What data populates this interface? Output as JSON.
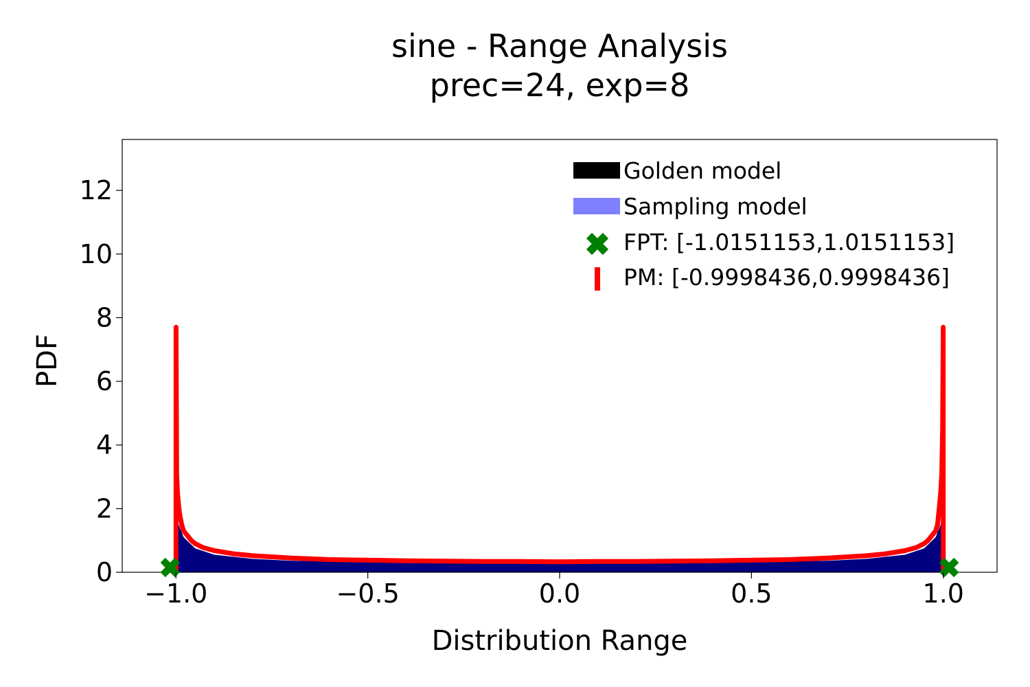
{
  "chart_data": {
    "type": "area",
    "title": "sine - Range Analysis",
    "subtitle": "prec=24, exp=8",
    "xlabel": "Distribution Range",
    "ylabel": "PDF",
    "xlim": [
      -1.14,
      1.14
    ],
    "ylim": [
      0,
      13.6
    ],
    "x_ticks": [
      -1.0,
      -0.5,
      0.0,
      0.5,
      1.0
    ],
    "x_tick_labels": [
      "−1.0",
      "−0.5",
      "0.0",
      "0.5",
      "1.0"
    ],
    "y_ticks": [
      0,
      2,
      4,
      6,
      8,
      10,
      12
    ],
    "y_tick_labels": [
      "0",
      "2",
      "4",
      "6",
      "8",
      "10",
      "12"
    ],
    "grid": false,
    "legend_position": "upper-right",
    "series": [
      {
        "name": "Golden model",
        "kind": "filled-area",
        "color": "#000000",
        "x": [
          -0.9998,
          -0.999,
          -0.99,
          -0.98,
          -0.95,
          -0.9,
          -0.8,
          -0.7,
          -0.5,
          -0.3,
          0.0,
          0.3,
          0.5,
          0.7,
          0.8,
          0.9,
          0.95,
          0.98,
          0.99,
          0.999,
          0.9998
        ],
        "y": [
          1.8,
          1.7,
          1.4,
          1.1,
          0.75,
          0.55,
          0.42,
          0.36,
          0.32,
          0.3,
          0.29,
          0.3,
          0.32,
          0.36,
          0.42,
          0.55,
          0.75,
          1.1,
          1.4,
          1.7,
          1.8
        ]
      },
      {
        "name": "Sampling model",
        "kind": "filled-area",
        "color": "#8080ff",
        "x": [
          -0.9998,
          -0.999,
          -0.99,
          -0.98,
          -0.95,
          -0.9,
          -0.8,
          -0.7,
          -0.5,
          -0.3,
          0.0,
          0.3,
          0.5,
          0.7,
          0.8,
          0.9,
          0.95,
          0.98,
          0.99,
          0.999,
          0.9998
        ],
        "y": [
          1.8,
          1.7,
          1.4,
          1.1,
          0.75,
          0.55,
          0.42,
          0.36,
          0.32,
          0.3,
          0.29,
          0.3,
          0.32,
          0.36,
          0.42,
          0.55,
          0.75,
          1.1,
          1.4,
          1.7,
          1.8
        ]
      },
      {
        "name": "PM: [-0.9998436,0.9998436]",
        "kind": "line",
        "color": "#ff0000",
        "x": [
          -0.9998436,
          -0.9997,
          -0.998,
          -0.996,
          -0.993,
          -0.99,
          -0.985,
          -0.98,
          -0.97,
          -0.96,
          -0.95,
          -0.93,
          -0.9,
          -0.85,
          -0.8,
          -0.7,
          -0.6,
          -0.5,
          -0.4,
          -0.3,
          -0.2,
          -0.1,
          0.0,
          0.1,
          0.2,
          0.3,
          0.4,
          0.5,
          0.6,
          0.7,
          0.8,
          0.85,
          0.9,
          0.93,
          0.95,
          0.96,
          0.97,
          0.98,
          0.985,
          0.99,
          0.993,
          0.996,
          0.998,
          0.9997,
          0.9998436
        ],
        "y": [
          0,
          7.7,
          3.1,
          2.5,
          2.1,
          1.8,
          1.5,
          1.3,
          1.15,
          1.0,
          0.9,
          0.78,
          0.68,
          0.58,
          0.52,
          0.45,
          0.4,
          0.38,
          0.36,
          0.35,
          0.34,
          0.34,
          0.33,
          0.34,
          0.34,
          0.35,
          0.36,
          0.38,
          0.4,
          0.45,
          0.52,
          0.58,
          0.68,
          0.78,
          0.9,
          1.0,
          1.15,
          1.3,
          1.5,
          2.1,
          2.5,
          3.1,
          4.5,
          7.7,
          0
        ]
      },
      {
        "name": "FPT: [-1.0151153,1.0151153]",
        "kind": "marker",
        "color": "#008000",
        "x": [
          -1.0151153,
          1.0151153
        ],
        "y": [
          0.15,
          0.15
        ]
      }
    ]
  },
  "legend": {
    "items": [
      {
        "label": "Golden model",
        "swatch": "bar",
        "color": "#000000"
      },
      {
        "label": "Sampling model",
        "swatch": "bar",
        "color": "#8080ff"
      },
      {
        "label": "FPT: [-1.0151153,1.0151153]",
        "swatch": "x-marker",
        "color": "#008000"
      },
      {
        "label": "PM: [-0.9998436,0.9998436]",
        "swatch": "vline",
        "color": "#ff0000"
      }
    ]
  },
  "colors": {
    "fill_dark": "#000080",
    "axis": "#000000",
    "background": "#ffffff"
  }
}
